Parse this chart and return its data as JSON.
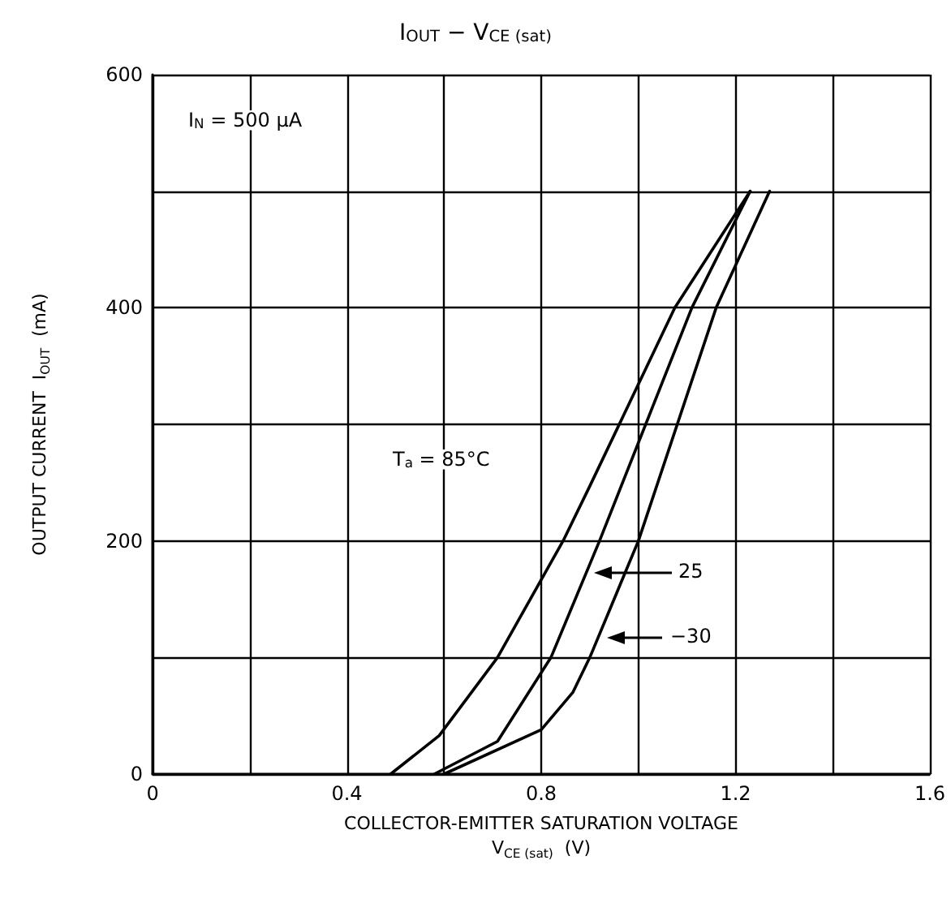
{
  "chart_data": {
    "type": "line",
    "title": "I$_{OUT}$ − V$_{CE (sat)}$",
    "xlabel": "COLLECTOR-EMITTER SATURATION VOLTAGE\nV$_{CE (sat)}$  (V)",
    "ylabel": "OUTPUT CURRENT  I$_{OUT}$  (mA)",
    "series": [
      {
        "color": "#000000",
        "x": [
          0.49,
          0.59,
          0.71,
          0.845,
          0.9,
          1.075,
          1.23
        ],
        "values": [
          0,
          33,
          100,
          200,
          247,
          400,
          500
        ]
      },
      {
        "color": "#000000",
        "x": [
          0.58,
          0.71,
          0.82,
          0.92,
          1.11,
          1.23
        ],
        "values": [
          0,
          28,
          100,
          200,
          400,
          500
        ]
      },
      {
        "color": "#000000",
        "x": [
          0.6,
          0.8,
          0.865,
          0.9,
          1.0,
          1.16,
          1.27
        ],
        "values": [
          0,
          38,
          70,
          100,
          200,
          400,
          500
        ]
      }
    ],
    "annotations": [
      "I$_{N}$ = 500 μA",
      "T$_{a}$ = 85°C",
      "25",
      "−30"
    ],
    "xlim": [
      0,
      1.6
    ],
    "xticks": [
      0,
      {
        "value": 0.2,
        "label": null
      },
      0.4,
      {
        "value": 0.6,
        "label": null
      },
      0.8,
      {
        "value": 1.0,
        "label": null
      },
      1.2,
      {
        "value": 1.4,
        "label": null
      },
      1.6
    ],
    "ylim": [
      0,
      600
    ],
    "yticks": [
      0,
      {
        "value": 100,
        "label": null
      },
      200,
      {
        "value": 300,
        "label": null
      },
      400,
      {
        "value": 500,
        "label": null
      },
      600
    ],
    "grid": true,
    "marker": "none",
    "line_style": "solid"
  }
}
